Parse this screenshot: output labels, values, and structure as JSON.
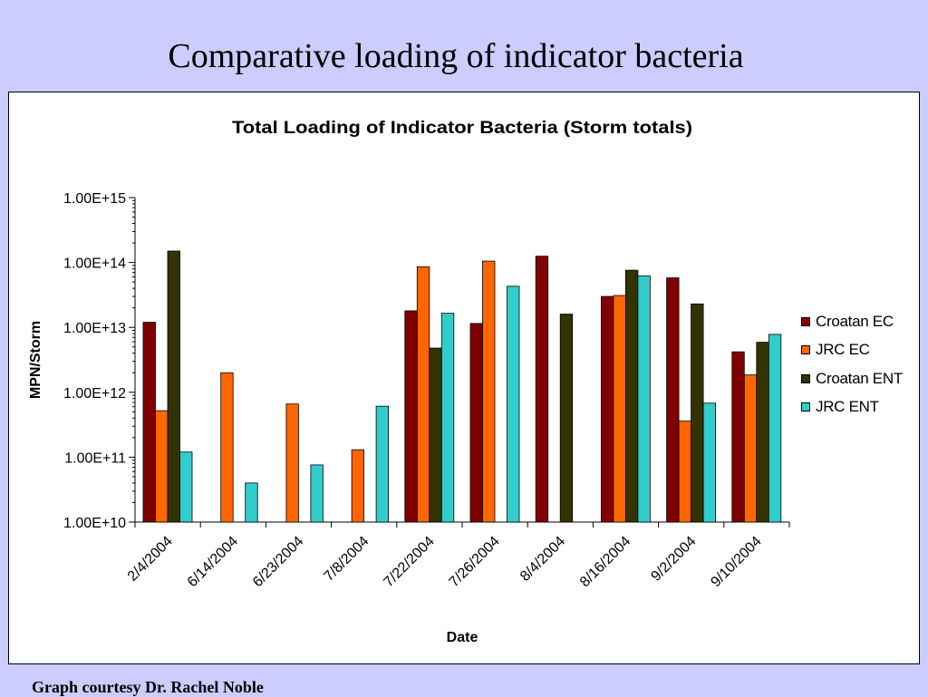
{
  "slide": {
    "title": "Comparative loading of indicator bacteria",
    "footer": "Graph courtesy Dr. Rachel Noble"
  },
  "chart_data": {
    "type": "bar",
    "title": "Total Loading of Indicator Bacteria (Storm totals)",
    "xlabel": "Date",
    "ylabel": "MPN/Storm",
    "yscale": "log",
    "ylim": [
      10000000000.0,
      1000000000000000.0
    ],
    "yticks": [
      "1.00E+10",
      "1.00E+11",
      "1.00E+12",
      "1.00E+13",
      "1.00E+14",
      "1.00E+15"
    ],
    "categories": [
      "2/4/2004",
      "6/14/2004",
      "6/23/2004",
      "7/8/2004",
      "7/22/2004",
      "7/26/2004",
      "8/4/2004",
      "8/16/2004",
      "9/2/2004",
      "9/10/2004"
    ],
    "series": [
      {
        "name": "Croatan EC",
        "color": "#800000",
        "values": [
          12000000000000.0,
          null,
          null,
          null,
          18000000000000.0,
          11500000000000.0,
          125000000000000.0,
          30000000000000.0,
          58000000000000.0,
          4200000000000.0
        ]
      },
      {
        "name": "JRC EC",
        "color": "#ff6600",
        "values": [
          520000000000.0,
          2000000000000.0,
          660000000000.0,
          130000000000.0,
          86000000000000.0,
          105000000000000.0,
          null,
          31000000000000.0,
          360000000000.0,
          1850000000000.0
        ]
      },
      {
        "name": "Croatan ENT",
        "color": "#333300",
        "values": [
          150000000000000.0,
          null,
          null,
          null,
          4800000000000.0,
          null,
          16000000000000.0,
          76000000000000.0,
          23000000000000.0,
          5900000000000.0
        ]
      },
      {
        "name": "JRC ENT",
        "color": "#33cccc",
        "values": [
          120000000000.0,
          40000000000.0,
          76000000000.0,
          610000000000.0,
          16500000000000.0,
          43000000000000.0,
          null,
          62000000000000.0,
          680000000000.0,
          7800000000000.0
        ]
      }
    ],
    "grid": false,
    "legend_position": "right"
  }
}
